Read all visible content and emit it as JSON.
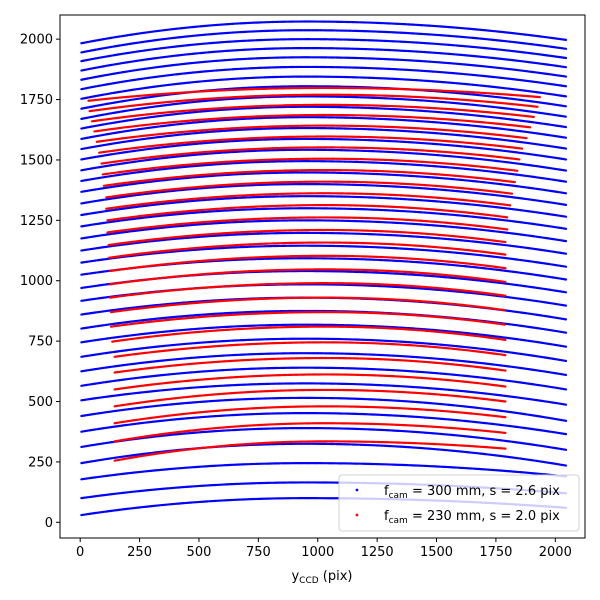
{
  "chart_data": {
    "type": "scatter",
    "title": "",
    "xlabel": {
      "main": "y",
      "sub": "CCD",
      "rest": " (pix)"
    },
    "ylabel": "",
    "xlim": [
      -85,
      2125
    ],
    "ylim": [
      -65,
      2100
    ],
    "xticks": [
      0,
      250,
      500,
      750,
      1000,
      1250,
      1500,
      1750,
      2000
    ],
    "yticks": [
      0,
      250,
      500,
      750,
      1000,
      1250,
      1500,
      1750,
      2000
    ],
    "grid": false,
    "legend_position": "lower-right",
    "series": [
      {
        "name": {
          "prefix": "f",
          "sub": "cam",
          "rest": " = 300 mm, s = 2.6 pix"
        },
        "color": "#0000ff",
        "marker": "point",
        "x_range": [
          5,
          2045
        ],
        "x_peak": 950,
        "curves": [
          {
            "y_start": 30,
            "y_peak": 100,
            "y_end": 60
          },
          {
            "y_start": 100,
            "y_peak": 165,
            "y_end": 120
          },
          {
            "y_start": 178,
            "y_peak": 245,
            "y_end": 190
          },
          {
            "y_start": 245,
            "y_peak": 325,
            "y_end": 235
          },
          {
            "y_start": 312,
            "y_peak": 390,
            "y_end": 300
          },
          {
            "y_start": 375,
            "y_peak": 452,
            "y_end": 365
          },
          {
            "y_start": 440,
            "y_peak": 515,
            "y_end": 420
          },
          {
            "y_start": 505,
            "y_peak": 575,
            "y_end": 487
          },
          {
            "y_start": 565,
            "y_peak": 640,
            "y_end": 550
          },
          {
            "y_start": 625,
            "y_peak": 700,
            "y_end": 610
          },
          {
            "y_start": 685,
            "y_peak": 760,
            "y_end": 668
          },
          {
            "y_start": 745,
            "y_peak": 818,
            "y_end": 727
          },
          {
            "y_start": 802,
            "y_peak": 875,
            "y_end": 785
          },
          {
            "y_start": 860,
            "y_peak": 930,
            "y_end": 840
          },
          {
            "y_start": 917,
            "y_peak": 985,
            "y_end": 897
          },
          {
            "y_start": 970,
            "y_peak": 1040,
            "y_end": 952
          },
          {
            "y_start": 1025,
            "y_peak": 1093,
            "y_end": 1005
          },
          {
            "y_start": 1075,
            "y_peak": 1145,
            "y_end": 1058
          },
          {
            "y_start": 1125,
            "y_peak": 1198,
            "y_end": 1112
          },
          {
            "y_start": 1175,
            "y_peak": 1250,
            "y_end": 1164
          },
          {
            "y_start": 1225,
            "y_peak": 1300,
            "y_end": 1215
          },
          {
            "y_start": 1272,
            "y_peak": 1350,
            "y_end": 1265
          },
          {
            "y_start": 1320,
            "y_peak": 1400,
            "y_end": 1314
          },
          {
            "y_start": 1368,
            "y_peak": 1448,
            "y_end": 1362
          },
          {
            "y_start": 1413,
            "y_peak": 1495,
            "y_end": 1410
          },
          {
            "y_start": 1457,
            "y_peak": 1542,
            "y_end": 1456
          },
          {
            "y_start": 1502,
            "y_peak": 1587,
            "y_end": 1502
          },
          {
            "y_start": 1545,
            "y_peak": 1632,
            "y_end": 1547
          },
          {
            "y_start": 1587,
            "y_peak": 1677,
            "y_end": 1592
          },
          {
            "y_start": 1630,
            "y_peak": 1720,
            "y_end": 1636
          },
          {
            "y_start": 1670,
            "y_peak": 1763,
            "y_end": 1679
          },
          {
            "y_start": 1712,
            "y_peak": 1805,
            "y_end": 1722
          },
          {
            "y_start": 1753,
            "y_peak": 1845,
            "y_end": 1763
          },
          {
            "y_start": 1793,
            "y_peak": 1885,
            "y_end": 1805
          },
          {
            "y_start": 1832,
            "y_peak": 1925,
            "y_end": 1845
          },
          {
            "y_start": 1870,
            "y_peak": 1963,
            "y_end": 1884
          },
          {
            "y_start": 1909,
            "y_peak": 2000,
            "y_end": 1922
          },
          {
            "y_start": 1945,
            "y_peak": 2037,
            "y_end": 1960
          },
          {
            "y_start": 1983,
            "y_peak": 2073,
            "y_end": 1997
          }
        ]
      },
      {
        "name": {
          "prefix": "f",
          "sub": "cam",
          "rest": " = 230 mm, s = 2.0 pix"
        },
        "color": "#ff0000",
        "marker": "point",
        "x_peak": 1030,
        "curves": [
          {
            "x0": 145,
            "x1": 1790,
            "y_start": 255,
            "y_peak": 335,
            "y_end": 305
          },
          {
            "x0": 145,
            "x1": 1790,
            "y_start": 335,
            "y_peak": 410,
            "y_end": 370
          },
          {
            "x0": 145,
            "x1": 1790,
            "y_start": 410,
            "y_peak": 480,
            "y_end": 435
          },
          {
            "x0": 145,
            "x1": 1790,
            "y_start": 480,
            "y_peak": 548,
            "y_end": 500
          },
          {
            "x0": 145,
            "x1": 1790,
            "y_start": 550,
            "y_peak": 612,
            "y_end": 562
          },
          {
            "x0": 145,
            "x1": 1790,
            "y_start": 620,
            "y_peak": 680,
            "y_end": 628
          },
          {
            "x0": 145,
            "x1": 1790,
            "y_start": 685,
            "y_peak": 745,
            "y_end": 692
          },
          {
            "x0": 135,
            "x1": 1790,
            "y_start": 748,
            "y_peak": 810,
            "y_end": 755
          },
          {
            "x0": 130,
            "x1": 1790,
            "y_start": 810,
            "y_peak": 870,
            "y_end": 818
          },
          {
            "x0": 130,
            "x1": 1790,
            "y_start": 870,
            "y_peak": 930,
            "y_end": 878
          },
          {
            "x0": 125,
            "x1": 1790,
            "y_start": 930,
            "y_peak": 990,
            "y_end": 938
          },
          {
            "x0": 125,
            "x1": 1790,
            "y_start": 985,
            "y_peak": 1047,
            "y_end": 995
          },
          {
            "x0": 125,
            "x1": 1790,
            "y_start": 1040,
            "y_peak": 1103,
            "y_end": 1052
          },
          {
            "x0": 120,
            "x1": 1790,
            "y_start": 1095,
            "y_peak": 1158,
            "y_end": 1108
          },
          {
            "x0": 120,
            "x1": 1790,
            "y_start": 1148,
            "y_peak": 1210,
            "y_end": 1160
          },
          {
            "x0": 115,
            "x1": 1800,
            "y_start": 1200,
            "y_peak": 1262,
            "y_end": 1212
          },
          {
            "x0": 115,
            "x1": 1800,
            "y_start": 1250,
            "y_peak": 1313,
            "y_end": 1262
          },
          {
            "x0": 110,
            "x1": 1810,
            "y_start": 1298,
            "y_peak": 1362,
            "y_end": 1312
          },
          {
            "x0": 110,
            "x1": 1820,
            "y_start": 1345,
            "y_peak": 1410,
            "y_end": 1360
          },
          {
            "x0": 100,
            "x1": 1830,
            "y_start": 1393,
            "y_peak": 1458,
            "y_end": 1408
          },
          {
            "x0": 95,
            "x1": 1840,
            "y_start": 1440,
            "y_peak": 1505,
            "y_end": 1455
          },
          {
            "x0": 90,
            "x1": 1850,
            "y_start": 1485,
            "y_peak": 1552,
            "y_end": 1502
          },
          {
            "x0": 80,
            "x1": 1860,
            "y_start": 1530,
            "y_peak": 1597,
            "y_end": 1547
          },
          {
            "x0": 70,
            "x1": 1880,
            "y_start": 1575,
            "y_peak": 1642,
            "y_end": 1590
          },
          {
            "x0": 60,
            "x1": 1895,
            "y_start": 1618,
            "y_peak": 1686,
            "y_end": 1635
          },
          {
            "x0": 50,
            "x1": 1910,
            "y_start": 1660,
            "y_peak": 1728,
            "y_end": 1678
          },
          {
            "x0": 40,
            "x1": 1925,
            "y_start": 1702,
            "y_peak": 1770,
            "y_end": 1720
          },
          {
            "x0": 35,
            "x1": 1935,
            "y_start": 1745,
            "y_peak": 1798,
            "y_end": 1760
          }
        ]
      }
    ]
  }
}
